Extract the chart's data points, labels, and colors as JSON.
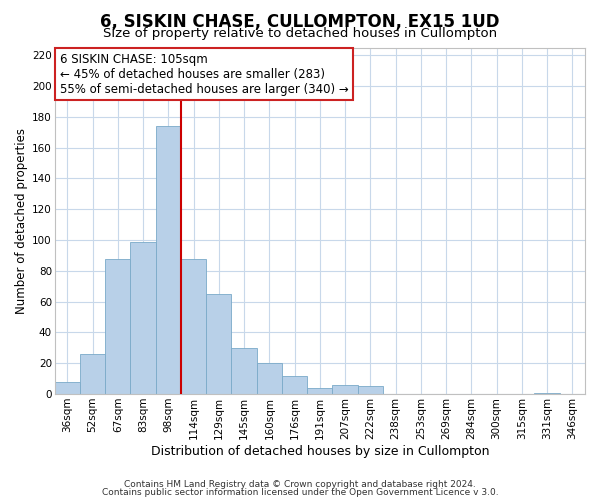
{
  "title": "6, SISKIN CHASE, CULLOMPTON, EX15 1UD",
  "subtitle": "Size of property relative to detached houses in Cullompton",
  "xlabel": "Distribution of detached houses by size in Cullompton",
  "ylabel": "Number of detached properties",
  "bar_labels": [
    "36sqm",
    "52sqm",
    "67sqm",
    "83sqm",
    "98sqm",
    "114sqm",
    "129sqm",
    "145sqm",
    "160sqm",
    "176sqm",
    "191sqm",
    "207sqm",
    "222sqm",
    "238sqm",
    "253sqm",
    "269sqm",
    "284sqm",
    "300sqm",
    "315sqm",
    "331sqm",
    "346sqm"
  ],
  "bar_values": [
    8,
    26,
    88,
    99,
    174,
    88,
    65,
    30,
    20,
    12,
    4,
    6,
    5,
    0,
    0,
    0,
    0,
    0,
    0,
    1,
    0
  ],
  "bar_color": "#b8d0e8",
  "bar_edge_color": "#7aaac8",
  "vline_x": 4.5,
  "vline_color": "#cc0000",
  "ylim": [
    0,
    225
  ],
  "yticks": [
    0,
    20,
    40,
    60,
    80,
    100,
    120,
    140,
    160,
    180,
    200,
    220
  ],
  "annotation_title": "6 SISKIN CHASE: 105sqm",
  "annotation_line1": "← 45% of detached houses are smaller (283)",
  "annotation_line2": "55% of semi-detached houses are larger (340) →",
  "footer1": "Contains HM Land Registry data © Crown copyright and database right 2024.",
  "footer2": "Contains public sector information licensed under the Open Government Licence v 3.0.",
  "bg_color": "#ffffff",
  "grid_color": "#c8d8ea",
  "title_fontsize": 12,
  "subtitle_fontsize": 9.5,
  "xlabel_fontsize": 9,
  "ylabel_fontsize": 8.5,
  "tick_fontsize": 7.5,
  "annotation_fontsize": 8.5,
  "footer_fontsize": 6.5
}
